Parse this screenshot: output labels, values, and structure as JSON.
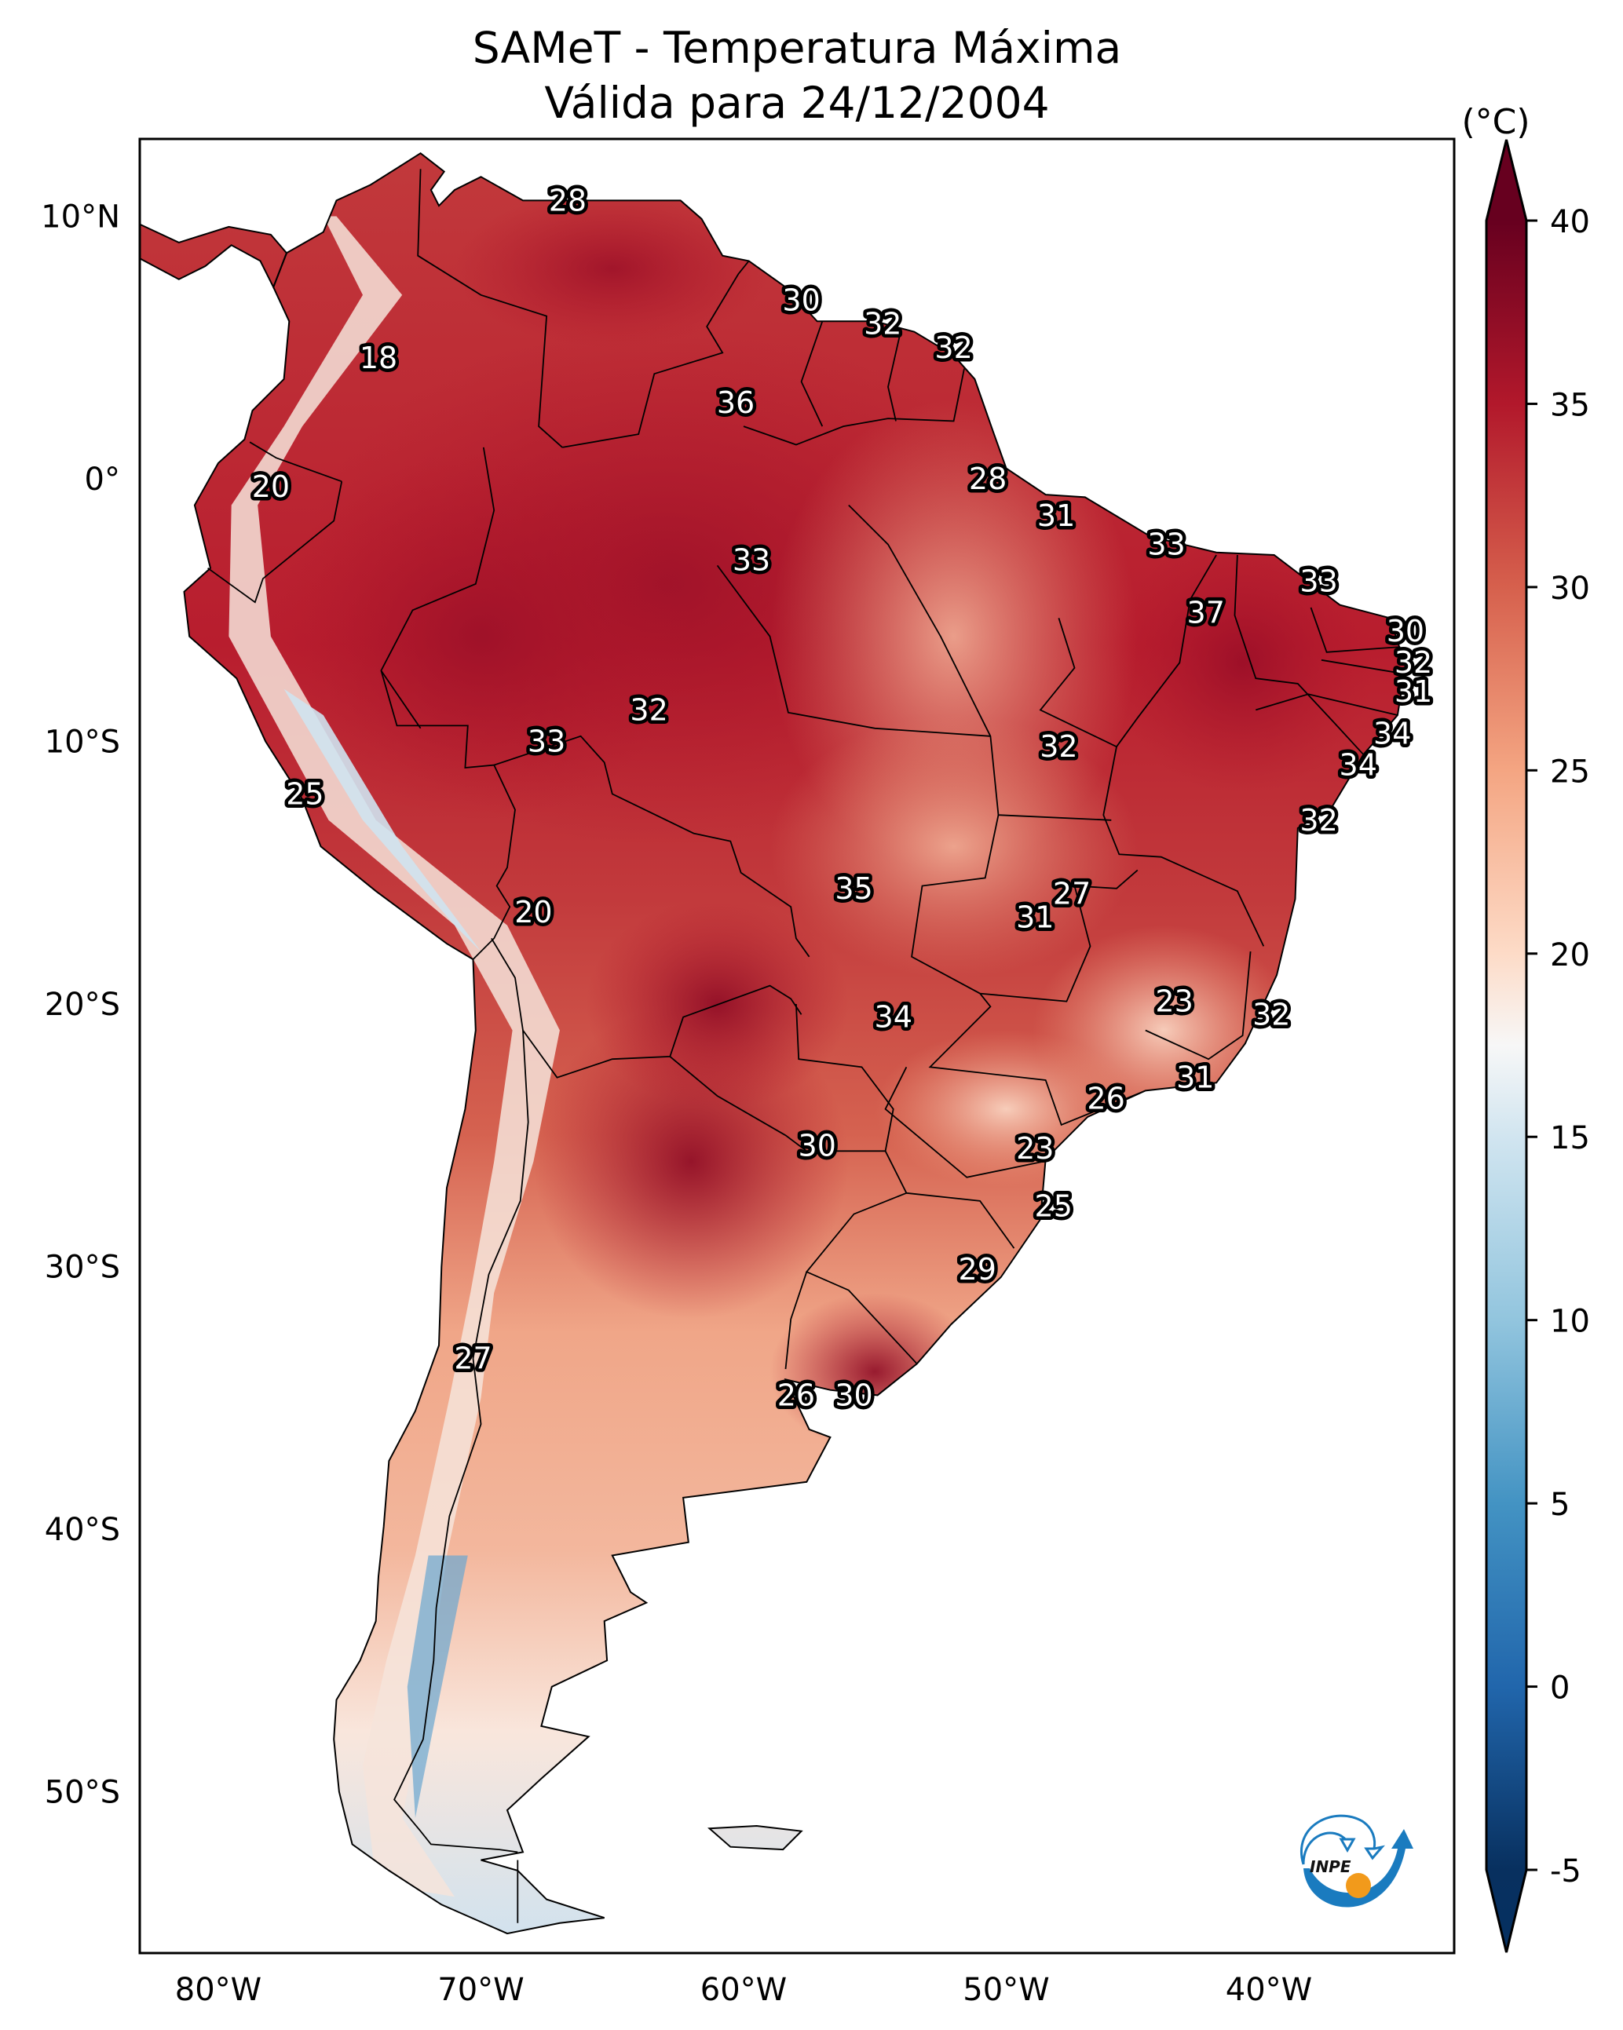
{
  "title": {
    "line1": "SAMeT - Temperatura Máxima",
    "line2": "Válida para 24/12/2004"
  },
  "logo": {
    "text": "INPE",
    "name": "inpe-logo"
  },
  "chart_data": {
    "type": "heatmap",
    "title": "SAMeT - Temperatura Máxima — Válida para 24/12/2004",
    "xlabel": "",
    "ylabel": "",
    "projection": "PlateCarree",
    "extent": {
      "lon": [
        -83,
        -33
      ],
      "lat": [
        -56,
        13
      ]
    },
    "x_ticks": [
      {
        "value": -80,
        "label": "80°W"
      },
      {
        "value": -70,
        "label": "70°W"
      },
      {
        "value": -60,
        "label": "60°W"
      },
      {
        "value": -50,
        "label": "50°W"
      },
      {
        "value": -40,
        "label": "40°W"
      }
    ],
    "y_ticks": [
      {
        "value": 10,
        "label": "10°N"
      },
      {
        "value": 0,
        "label": "0°"
      },
      {
        "value": -10,
        "label": "10°S"
      },
      {
        "value": -20,
        "label": "20°S"
      },
      {
        "value": -30,
        "label": "30°S"
      },
      {
        "value": -40,
        "label": "40°S"
      },
      {
        "value": -50,
        "label": "50°S"
      }
    ],
    "colorbar": {
      "label": "(°C)",
      "cmap": "RdBu_r",
      "range": [
        -5,
        40
      ],
      "extend": "both",
      "ticks": [
        40,
        35,
        30,
        25,
        20,
        15,
        10,
        5,
        0,
        -5
      ],
      "tick_labels": [
        "40",
        "35",
        "30",
        "25",
        "20",
        "15",
        "10",
        "5",
        "0",
        "-5"
      ],
      "stops": [
        {
          "value": -7,
          "color": "#053061"
        },
        {
          "value": -5,
          "color": "#08305f"
        },
        {
          "value": 0,
          "color": "#2166ac"
        },
        {
          "value": 5,
          "color": "#4393c3"
        },
        {
          "value": 10,
          "color": "#92c5de"
        },
        {
          "value": 15,
          "color": "#d1e5f0"
        },
        {
          "value": 17.5,
          "color": "#f7f7f7"
        },
        {
          "value": 20,
          "color": "#fddbc7"
        },
        {
          "value": 25,
          "color": "#f4a582"
        },
        {
          "value": 30,
          "color": "#d6604d"
        },
        {
          "value": 35,
          "color": "#b2182b"
        },
        {
          "value": 40,
          "color": "#67001f"
        },
        {
          "value": 42,
          "color": "#67001f"
        }
      ]
    },
    "station_labels": [
      {
        "value": 28,
        "lon": -66.7,
        "lat": 10.6
      },
      {
        "value": 30,
        "lon": -57.8,
        "lat": 6.8
      },
      {
        "value": 32,
        "lon": -54.7,
        "lat": 5.9
      },
      {
        "value": 32,
        "lon": -52.0,
        "lat": 5.0
      },
      {
        "value": 18,
        "lon": -73.9,
        "lat": 4.6
      },
      {
        "value": 36,
        "lon": -60.3,
        "lat": 2.9
      },
      {
        "value": 28,
        "lon": -50.7,
        "lat": 0.0
      },
      {
        "value": 20,
        "lon": -78.0,
        "lat": -0.3
      },
      {
        "value": 31,
        "lon": -48.1,
        "lat": -1.4
      },
      {
        "value": 33,
        "lon": -43.9,
        "lat": -2.5
      },
      {
        "value": 33,
        "lon": -59.7,
        "lat": -3.1
      },
      {
        "value": 33,
        "lon": -38.1,
        "lat": -3.9
      },
      {
        "value": 37,
        "lon": -42.4,
        "lat": -5.1
      },
      {
        "value": 30,
        "lon": -34.8,
        "lat": -5.8
      },
      {
        "value": 32,
        "lon": -34.5,
        "lat": -7.0
      },
      {
        "value": 31,
        "lon": -34.5,
        "lat": -8.1
      },
      {
        "value": 32,
        "lon": -63.6,
        "lat": -8.8
      },
      {
        "value": 34,
        "lon": -35.3,
        "lat": -9.7
      },
      {
        "value": 33,
        "lon": -67.5,
        "lat": -10.0
      },
      {
        "value": 32,
        "lon": -48.0,
        "lat": -10.2
      },
      {
        "value": 34,
        "lon": -36.6,
        "lat": -10.9
      },
      {
        "value": 25,
        "lon": -76.7,
        "lat": -12.0
      },
      {
        "value": 32,
        "lon": -38.1,
        "lat": -13.0
      },
      {
        "value": 35,
        "lon": -55.8,
        "lat": -15.6
      },
      {
        "value": 27,
        "lon": -47.5,
        "lat": -15.8
      },
      {
        "value": 20,
        "lon": -68.0,
        "lat": -16.5
      },
      {
        "value": 31,
        "lon": -48.9,
        "lat": -16.7
      },
      {
        "value": 23,
        "lon": -43.6,
        "lat": -19.9
      },
      {
        "value": 32,
        "lon": -39.9,
        "lat": -20.4
      },
      {
        "value": 34,
        "lon": -54.3,
        "lat": -20.5
      },
      {
        "value": 31,
        "lon": -42.8,
        "lat": -22.8
      },
      {
        "value": 26,
        "lon": -46.2,
        "lat": -23.6
      },
      {
        "value": 30,
        "lon": -57.2,
        "lat": -25.4
      },
      {
        "value": 23,
        "lon": -48.9,
        "lat": -25.5
      },
      {
        "value": 25,
        "lon": -48.2,
        "lat": -27.7
      },
      {
        "value": 29,
        "lon": -51.1,
        "lat": -30.1
      },
      {
        "value": 27,
        "lon": -70.3,
        "lat": -33.5
      },
      {
        "value": 26,
        "lon": -58.0,
        "lat": -34.9
      },
      {
        "value": 30,
        "lon": -55.8,
        "lat": -34.9
      }
    ]
  }
}
